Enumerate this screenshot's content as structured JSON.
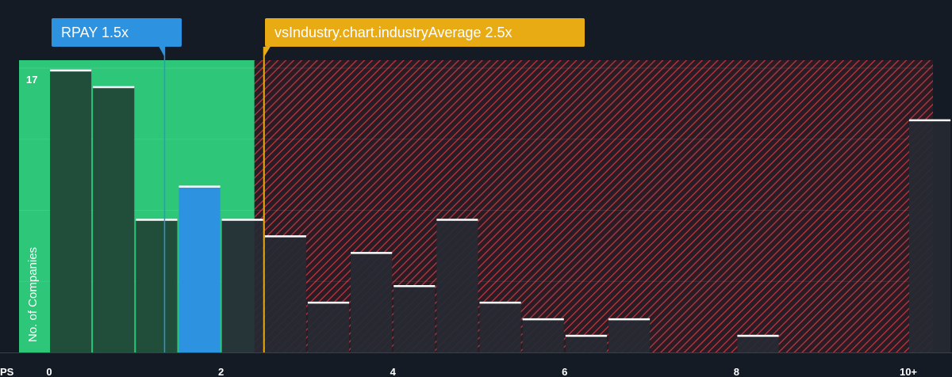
{
  "chart_data": {
    "type": "bar",
    "xlabel": "PS",
    "ylabel": "No. of Companies",
    "x_ticks": [
      "0",
      "2",
      "4",
      "6",
      "8",
      "10+"
    ],
    "y_tick_label": "17",
    "ylim": [
      0,
      17
    ],
    "bin_width": 0.5,
    "bins": [
      {
        "x": 0.0,
        "count": 17
      },
      {
        "x": 0.5,
        "count": 16
      },
      {
        "x": 1.0,
        "count": 8
      },
      {
        "x": 1.5,
        "count": 10
      },
      {
        "x": 2.0,
        "count": 8
      },
      {
        "x": 2.5,
        "count": 7
      },
      {
        "x": 3.0,
        "count": 3
      },
      {
        "x": 3.5,
        "count": 6
      },
      {
        "x": 4.0,
        "count": 4
      },
      {
        "x": 4.5,
        "count": 8
      },
      {
        "x": 5.0,
        "count": 3
      },
      {
        "x": 5.5,
        "count": 2
      },
      {
        "x": 6.0,
        "count": 1
      },
      {
        "x": 6.5,
        "count": 2
      },
      {
        "x": 7.0,
        "count": 0
      },
      {
        "x": 7.5,
        "count": 0
      },
      {
        "x": 8.0,
        "count": 1
      },
      {
        "x": 8.5,
        "count": 0
      },
      {
        "x": 9.0,
        "count": 0
      },
      {
        "x": 9.5,
        "count": 0
      },
      {
        "x": 10.0,
        "count": 14
      }
    ],
    "company": {
      "label": "RPAY 1.5x",
      "value": 1.5
    },
    "industry": {
      "label": "vsIndustry.chart.industryAverage 2.5x",
      "value": 2.5
    }
  },
  "colors": {
    "background": "#151b24",
    "undervalued_zone": "#2ec77a",
    "company_bar": "#2d92e0",
    "bar_green": "#1f4535",
    "bar_dark": "#262a33",
    "hatch": "#c0353f",
    "industry_line": "#e8ab14",
    "bar_top": "#ffffff"
  }
}
